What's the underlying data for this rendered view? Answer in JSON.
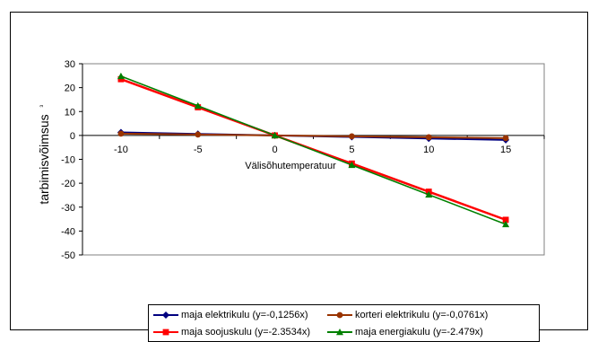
{
  "chart_data": {
    "type": "line",
    "title": "",
    "xlabel": "Välisõhutemperatuur",
    "ylabel": "tarbimisvõimsus",
    "ylabel_suffix": "³",
    "x": [
      -10,
      -5,
      0,
      5,
      10,
      15
    ],
    "xlim": [
      -10,
      15
    ],
    "ylim": [
      -50,
      30
    ],
    "yticks": [
      30,
      20,
      10,
      0,
      -10,
      -20,
      -30,
      -40,
      -50
    ],
    "grid": false,
    "legend_position": "bottom",
    "series": [
      {
        "name": "maja elektrikulu (y=-0,1256x)",
        "color": "#000080",
        "marker": "diamond",
        "values": [
          1.256,
          0.628,
          0,
          -0.628,
          -1.256,
          -1.884
        ]
      },
      {
        "name": "korteri elektrikulu (y=-0,0761x)",
        "color": "#993300",
        "marker": "circle",
        "values": [
          0.761,
          0.381,
          0,
          -0.381,
          -0.761,
          -1.142
        ]
      },
      {
        "name": "maja soojuskulu (y=-2.3534x)",
        "color": "#ff0000",
        "marker": "square",
        "values": [
          23.534,
          11.767,
          0,
          -11.767,
          -23.534,
          -35.301
        ]
      },
      {
        "name": "maja energiakulu (y=-2.479x)",
        "color": "#008000",
        "marker": "triangle",
        "values": [
          24.79,
          12.395,
          0,
          -12.395,
          -24.79,
          -37.185
        ]
      }
    ]
  }
}
